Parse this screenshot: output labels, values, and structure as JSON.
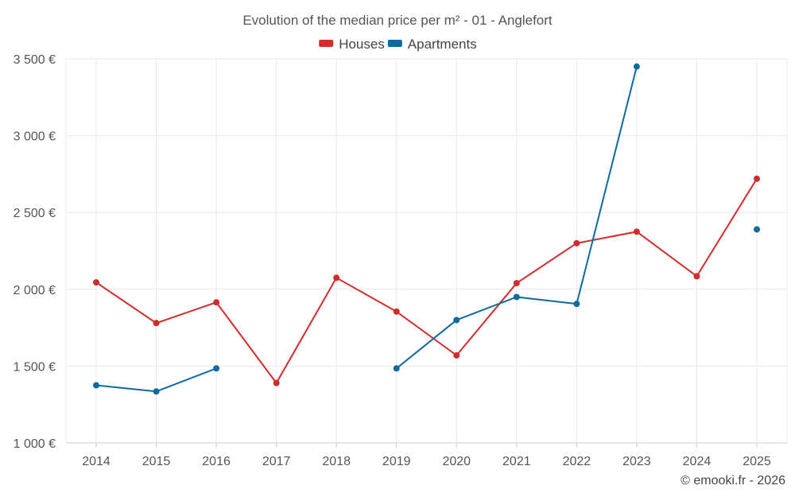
{
  "chart_data": {
    "type": "line",
    "title": "Evolution of the median price per m² - 01 - Anglefort",
    "categories": [
      "2014",
      "2015",
      "2016",
      "2017",
      "2018",
      "2019",
      "2020",
      "2021",
      "2022",
      "2023",
      "2024",
      "2025"
    ],
    "ylim": [
      1000,
      3500
    ],
    "yticks": [
      1000,
      1500,
      2000,
      2500,
      3000,
      3500
    ],
    "ytick_labels": [
      "1 000 €",
      "1 500 €",
      "2 000 €",
      "2 500 €",
      "3 000 €",
      "3 500 €"
    ],
    "xlabel": "",
    "ylabel": "",
    "grid": true,
    "legend_position": "top-center",
    "series": [
      {
        "name": "Houses",
        "color": "#d32a2a",
        "values": [
          2045,
          1780,
          1915,
          1390,
          2075,
          1855,
          1570,
          2040,
          2300,
          2375,
          2085,
          2720
        ]
      },
      {
        "name": "Apartments",
        "color": "#0f6aa0",
        "values": [
          1375,
          1335,
          1485,
          null,
          null,
          1485,
          1800,
          1950,
          1905,
          3450,
          null,
          2390
        ]
      }
    ]
  },
  "credit": "© emooki.fr - 2026"
}
